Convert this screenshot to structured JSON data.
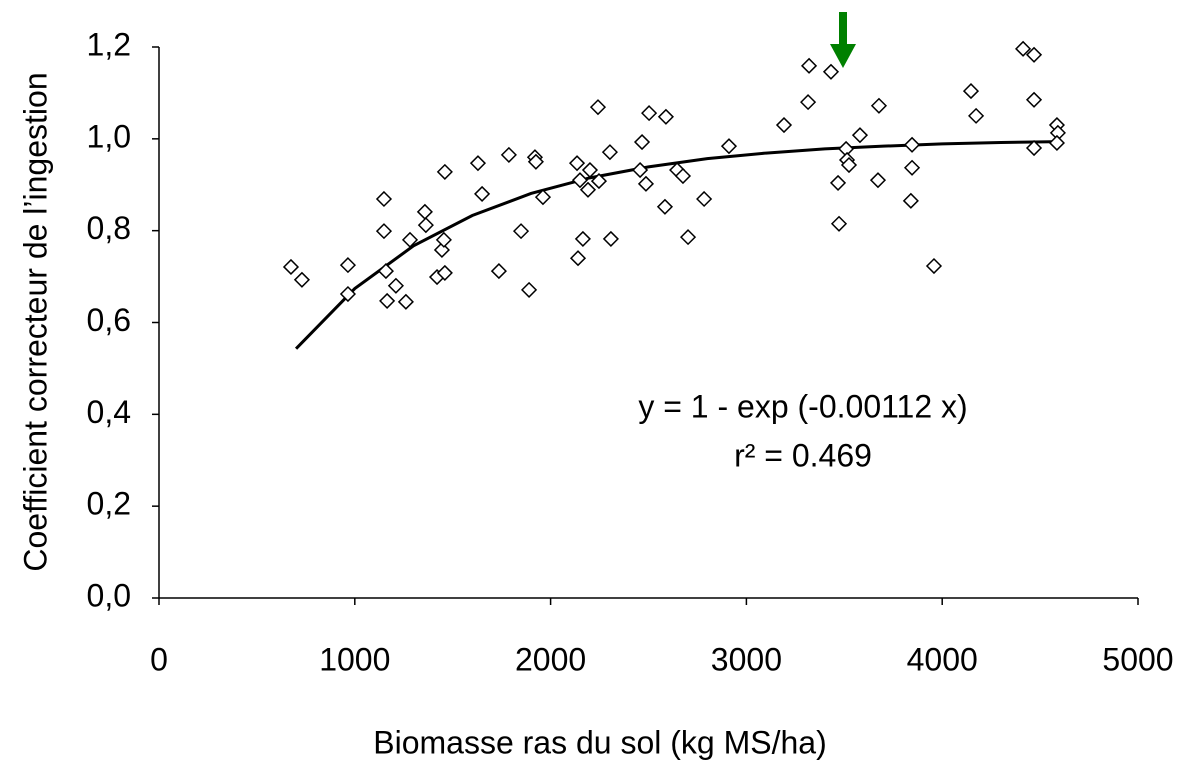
{
  "chart_data": {
    "type": "scatter",
    "x_label": "Biomasse ras du sol (kg MS/ha)",
    "y_label": "Coefficient correcteur de l’ingestion",
    "xlim": [
      0,
      5000
    ],
    "xticks": [
      0,
      1000,
      2000,
      3000,
      4000,
      5000
    ],
    "ylim": [
      0,
      1.2
    ],
    "yticks": [
      {
        "value": 0,
        "label": "0,0"
      },
      {
        "value": 0.2,
        "label": "0,2"
      },
      {
        "value": 0.4,
        "label": "0,4"
      },
      {
        "value": 0.6,
        "label": "0,6"
      },
      {
        "value": 0.8,
        "label": "0,8"
      },
      {
        "value": 1.0,
        "label": "1,0"
      },
      {
        "value": 1.2,
        "label": "1,2"
      }
    ],
    "points": {
      "color": "#000000",
      "x": [
        674,
        730,
        965,
        965,
        1149,
        1149,
        1159,
        1165,
        1210,
        1261,
        1282,
        1358,
        1363,
        1420,
        1445,
        1455,
        1460,
        1460,
        1736,
        1849,
        1890,
        1787,
        1650,
        1629,
        1920,
        1925,
        1961,
        2135,
        2150,
        2140,
        2165,
        2191,
        2201,
        2242,
        2247,
        2303,
        2308,
        2457,
        2467,
        2487,
        2503,
        2589,
        2584,
        2646,
        2676,
        2702,
        2784,
        2911,
        3192,
        3315,
        3320,
        3432,
        3468,
        3473,
        3509,
        3514,
        3524,
        3580,
        3672,
        3677,
        3840,
        3846,
        3846,
        3958,
        4147,
        4173,
        4413,
        4469,
        4469,
        4469,
        4586,
        4591,
        4586
      ],
      "y": [
        0.721,
        0.693,
        0.725,
        0.662,
        0.869,
        0.799,
        0.712,
        0.647,
        0.68,
        0.645,
        0.78,
        0.841,
        0.812,
        0.699,
        0.758,
        0.78,
        0.928,
        0.708,
        0.712,
        0.799,
        0.671,
        0.965,
        0.88,
        0.947,
        0.96,
        0.95,
        0.873,
        0.947,
        0.91,
        0.74,
        0.782,
        0.889,
        0.932,
        1.069,
        0.908,
        0.971,
        0.782,
        0.932,
        0.993,
        0.902,
        1.056,
        1.048,
        0.852,
        0.932,
        0.919,
        0.786,
        0.869,
        0.984,
        1.03,
        1.08,
        1.159,
        1.146,
        0.904,
        0.815,
        0.978,
        0.954,
        0.943,
        1.008,
        0.91,
        1.072,
        0.865,
        0.937,
        0.987,
        0.723,
        1.104,
        1.05,
        1.196,
        1.183,
        1.085,
        0.98,
        1.03,
        1.013,
        0.991
      ]
    },
    "fit": {
      "color": "#000000",
      "x": [
        700,
        1000,
        1300,
        1600,
        1900,
        2200,
        2500,
        2800,
        3100,
        3400,
        3700,
        4000,
        4300,
        4600
      ],
      "y": [
        0.543,
        0.674,
        0.767,
        0.833,
        0.881,
        0.915,
        0.939,
        0.957,
        0.969,
        0.978,
        0.984,
        0.989,
        0.992,
        0.994
      ]
    },
    "annotations": [
      "y = 1 - exp (-0.00112 x)",
      "r² = 0.469"
    ]
  }
}
